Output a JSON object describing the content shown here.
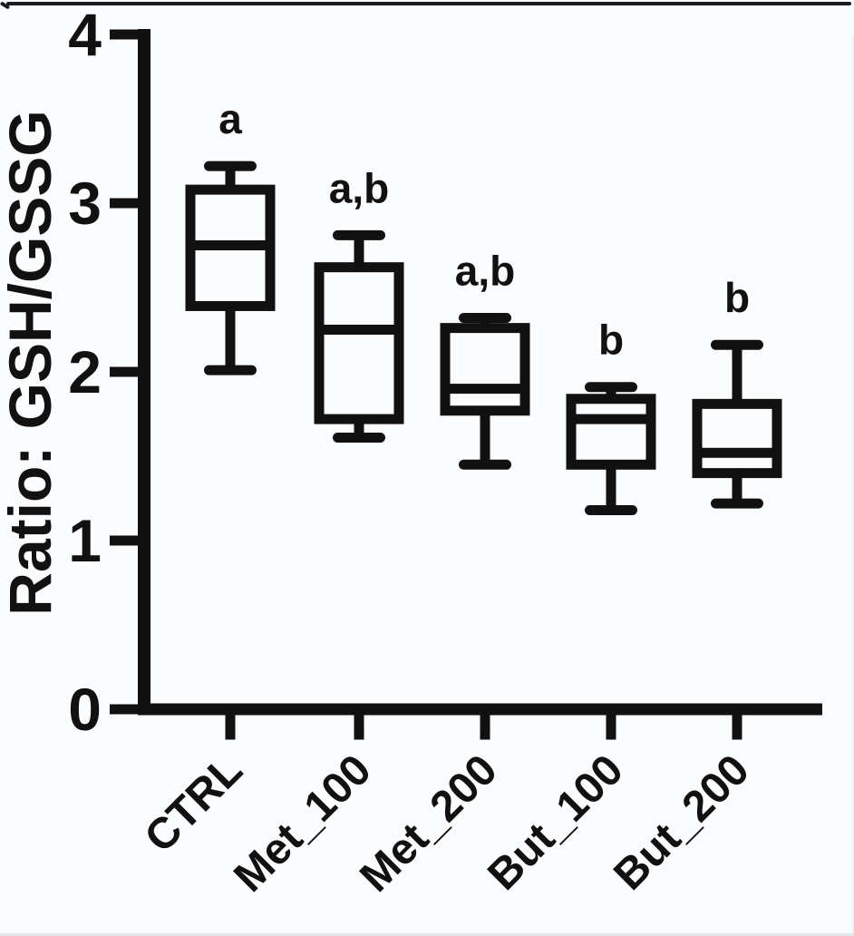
{
  "figure": {
    "background": "#fafcfd",
    "ink_color": "#111111",
    "frame_top_color": "#1a1d1f"
  },
  "chart_data": {
    "type": "box",
    "title": "",
    "xlabel": "",
    "ylabel": "Ratio: GSH/GSSG",
    "ylim": [
      0,
      4
    ],
    "yticks": [
      "0",
      "1",
      "2",
      "3",
      "4"
    ],
    "grid": false,
    "legend_position": "none",
    "categories": [
      "CTRL",
      "Met_100",
      "Met_200",
      "But_100",
      "But_200"
    ],
    "boxes": [
      {
        "category": "CTRL",
        "min": 2.01,
        "q1": 2.39,
        "median": 2.75,
        "q3": 3.08,
        "max": 3.22,
        "annotation": "a"
      },
      {
        "category": "Met_100",
        "min": 1.61,
        "q1": 1.72,
        "median": 2.25,
        "q3": 2.62,
        "max": 2.81,
        "annotation": "a,b"
      },
      {
        "category": "Met_200",
        "min": 1.45,
        "q1": 1.77,
        "median": 1.9,
        "q3": 2.26,
        "max": 2.32,
        "annotation": "a,b"
      },
      {
        "category": "But_100",
        "min": 1.18,
        "q1": 1.45,
        "median": 1.72,
        "q3": 1.84,
        "max": 1.91,
        "annotation": "b"
      },
      {
        "category": "But_200",
        "min": 1.22,
        "q1": 1.4,
        "median": 1.52,
        "q3": 1.81,
        "max": 2.16,
        "annotation": "b"
      }
    ]
  }
}
